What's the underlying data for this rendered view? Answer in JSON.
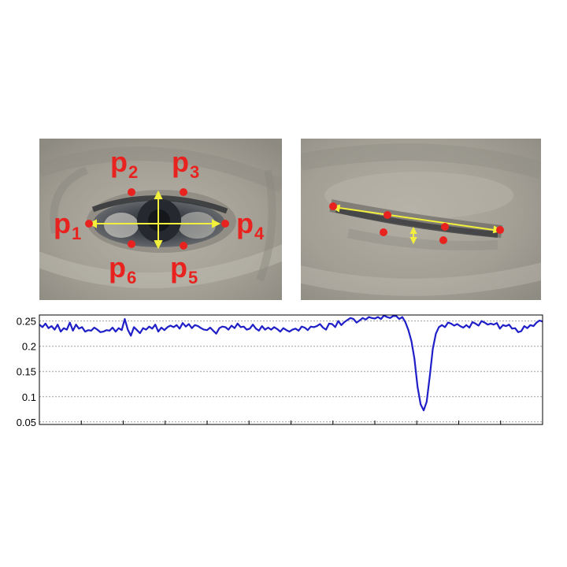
{
  "figure": {
    "open_eye": {
      "landmarks": [
        {
          "name": "p",
          "sub": "1"
        },
        {
          "name": "p",
          "sub": "2"
        },
        {
          "name": "p",
          "sub": "3"
        },
        {
          "name": "p",
          "sub": "4"
        },
        {
          "name": "p",
          "sub": "5"
        },
        {
          "name": "p",
          "sub": "6"
        }
      ]
    },
    "colors": {
      "landmark": "#e8231f",
      "arrow": "#f2f03c",
      "series": "#1f1fc8",
      "grid": "#9a9a9a"
    }
  },
  "chart_data": {
    "type": "line",
    "title": "",
    "xlabel": "",
    "ylabel": "",
    "ylim": [
      0.045,
      0.262
    ],
    "yticks": [
      "0.05",
      "0.1",
      "0.15",
      "0.2",
      "0.25"
    ],
    "ytick_values": [
      0.05,
      0.1,
      0.15,
      0.2,
      0.25
    ],
    "grid": true,
    "x_tick_count": 12,
    "series": [
      {
        "values": [
          0.243,
          0.238,
          0.245,
          0.236,
          0.24,
          0.233,
          0.243,
          0.229,
          0.236,
          0.233,
          0.247,
          0.231,
          0.243,
          0.235,
          0.238,
          0.229,
          0.232,
          0.231,
          0.237,
          0.233,
          0.228,
          0.229,
          0.232,
          0.231,
          0.237,
          0.229,
          0.236,
          0.232,
          0.254,
          0.233,
          0.221,
          0.238,
          0.232,
          0.226,
          0.236,
          0.233,
          0.239,
          0.235,
          0.243,
          0.229,
          0.237,
          0.232,
          0.238,
          0.241,
          0.238,
          0.242,
          0.235,
          0.246,
          0.239,
          0.244,
          0.236,
          0.242,
          0.24,
          0.236,
          0.233,
          0.232,
          0.237,
          0.231,
          0.225,
          0.236,
          0.239,
          0.238,
          0.233,
          0.241,
          0.236,
          0.245,
          0.238,
          0.239,
          0.233,
          0.235,
          0.243,
          0.235,
          0.231,
          0.24,
          0.233,
          0.237,
          0.233,
          0.238,
          0.234,
          0.229,
          0.236,
          0.232,
          0.229,
          0.233,
          0.235,
          0.231,
          0.239,
          0.237,
          0.232,
          0.239,
          0.238,
          0.24,
          0.244,
          0.237,
          0.233,
          0.245,
          0.244,
          0.238,
          0.25,
          0.242,
          0.248,
          0.252,
          0.256,
          0.254,
          0.247,
          0.251,
          0.256,
          0.253,
          0.258,
          0.256,
          0.255,
          0.258,
          0.254,
          0.261,
          0.258,
          0.256,
          0.26,
          0.26,
          0.254,
          0.258,
          0.248,
          0.232,
          0.21,
          0.175,
          0.12,
          0.085,
          0.073,
          0.09,
          0.14,
          0.195,
          0.225,
          0.238,
          0.242,
          0.238,
          0.247,
          0.245,
          0.241,
          0.244,
          0.24,
          0.237,
          0.242,
          0.237,
          0.248,
          0.245,
          0.241,
          0.25,
          0.247,
          0.243,
          0.245,
          0.243,
          0.246,
          0.235,
          0.242,
          0.24,
          0.243,
          0.235,
          0.236,
          0.228,
          0.23,
          0.24,
          0.236,
          0.242,
          0.24,
          0.247,
          0.251,
          0.249
        ]
      }
    ]
  }
}
